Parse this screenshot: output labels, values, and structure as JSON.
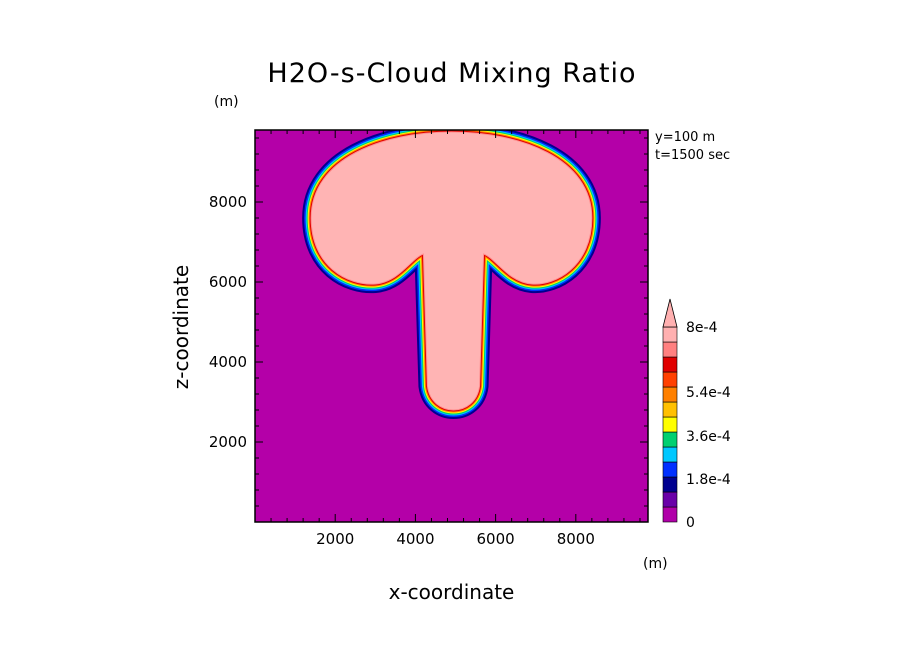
{
  "chart_data": {
    "type": "heatmap",
    "title": "H2O-s-Cloud Mixing Ratio",
    "xlabel": "x-coordinate",
    "ylabel": "z-coordinate",
    "x_unit": "(m)",
    "z_unit": "(m)",
    "xlim": [
      0,
      9800
    ],
    "ylim": [
      0,
      9800
    ],
    "xticks": [
      "2000",
      "4000",
      "6000",
      "8000"
    ],
    "yticks": [
      "2000",
      "4000",
      "6000",
      "8000"
    ],
    "annotations": [
      "y=100 m",
      "t=1500 sec"
    ],
    "colorbar": {
      "labels": [
        "0",
        "1.8e-4",
        "3.6e-4",
        "5.4e-4",
        "8e-4"
      ],
      "colors": [
        "#b000a8",
        "#6a00a8",
        "#00008f",
        "#0030ff",
        "#00c8ff",
        "#00d070",
        "#ffff00",
        "#ffc000",
        "#ff8000",
        "#ff4000",
        "#e00000",
        "#ff8080",
        "#ffb0b0"
      ]
    },
    "field_description_colors": {
      "background": "#b400a8",
      "core": "#ffb4b4"
    }
  }
}
